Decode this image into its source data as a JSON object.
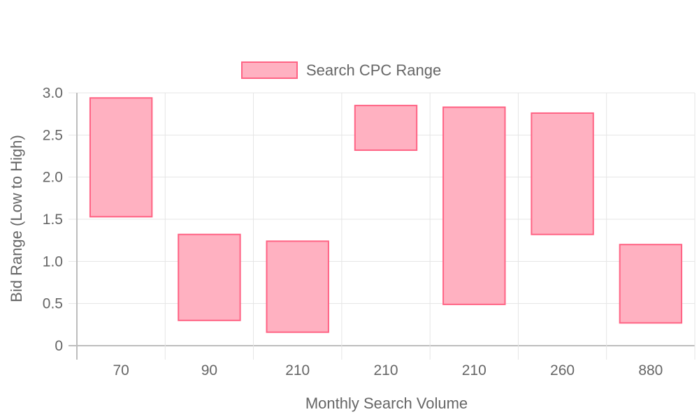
{
  "chart_data": {
    "type": "floating-bar",
    "title": "",
    "legend": {
      "label": "Search CPC Range",
      "position": "top"
    },
    "xlabel": "Monthly Search Volume",
    "ylabel": "Bid Range (Low to High)",
    "categories": [
      "70",
      "90",
      "210",
      "210",
      "210",
      "260",
      "880"
    ],
    "series": [
      {
        "name": "Search CPC Range",
        "ranges": [
          [
            1.53,
            2.94
          ],
          [
            0.3,
            1.32
          ],
          [
            0.16,
            1.24
          ],
          [
            2.32,
            2.85
          ],
          [
            0.49,
            2.83
          ],
          [
            1.32,
            2.76
          ],
          [
            0.27,
            1.2
          ]
        ]
      }
    ],
    "ylim": [
      0,
      3.0
    ],
    "yticks": [
      "0",
      "0.5",
      "1.0",
      "1.5",
      "2.0",
      "2.5",
      "3.0"
    ],
    "grid": true,
    "colors": {
      "fill": "#ffb1c1",
      "stroke": "#ff6384",
      "grid": "#e5e5e5",
      "axis": "#bdbdbd"
    }
  }
}
